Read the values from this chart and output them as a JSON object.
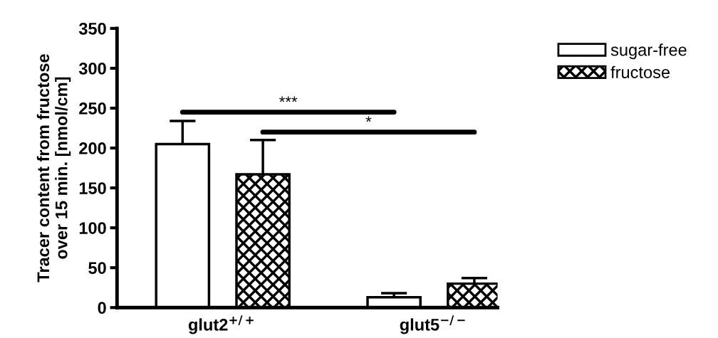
{
  "chart_data": {
    "type": "bar",
    "ylabel": "Tracer content from fructose\nover 15 min. [nmol/cm]",
    "categories": [
      "glut2$^{+/+}$",
      "glut5$^{−/−}$"
    ],
    "series": [
      {
        "name": "sugar-free",
        "color": "#ffffff",
        "values": [
          205,
          13
        ],
        "errors": [
          29,
          5
        ]
      },
      {
        "name": "fructose",
        "color": "#000000",
        "values": [
          167,
          30
        ],
        "errors": [
          43,
          7
        ]
      }
    ],
    "ylim": [
      0,
      350
    ],
    "yticks": [
      0,
      50,
      100,
      150,
      200,
      250,
      300,
      350
    ],
    "annotations": [
      "***",
      "*"
    ],
    "grid": false,
    "legend": "top right"
  }
}
